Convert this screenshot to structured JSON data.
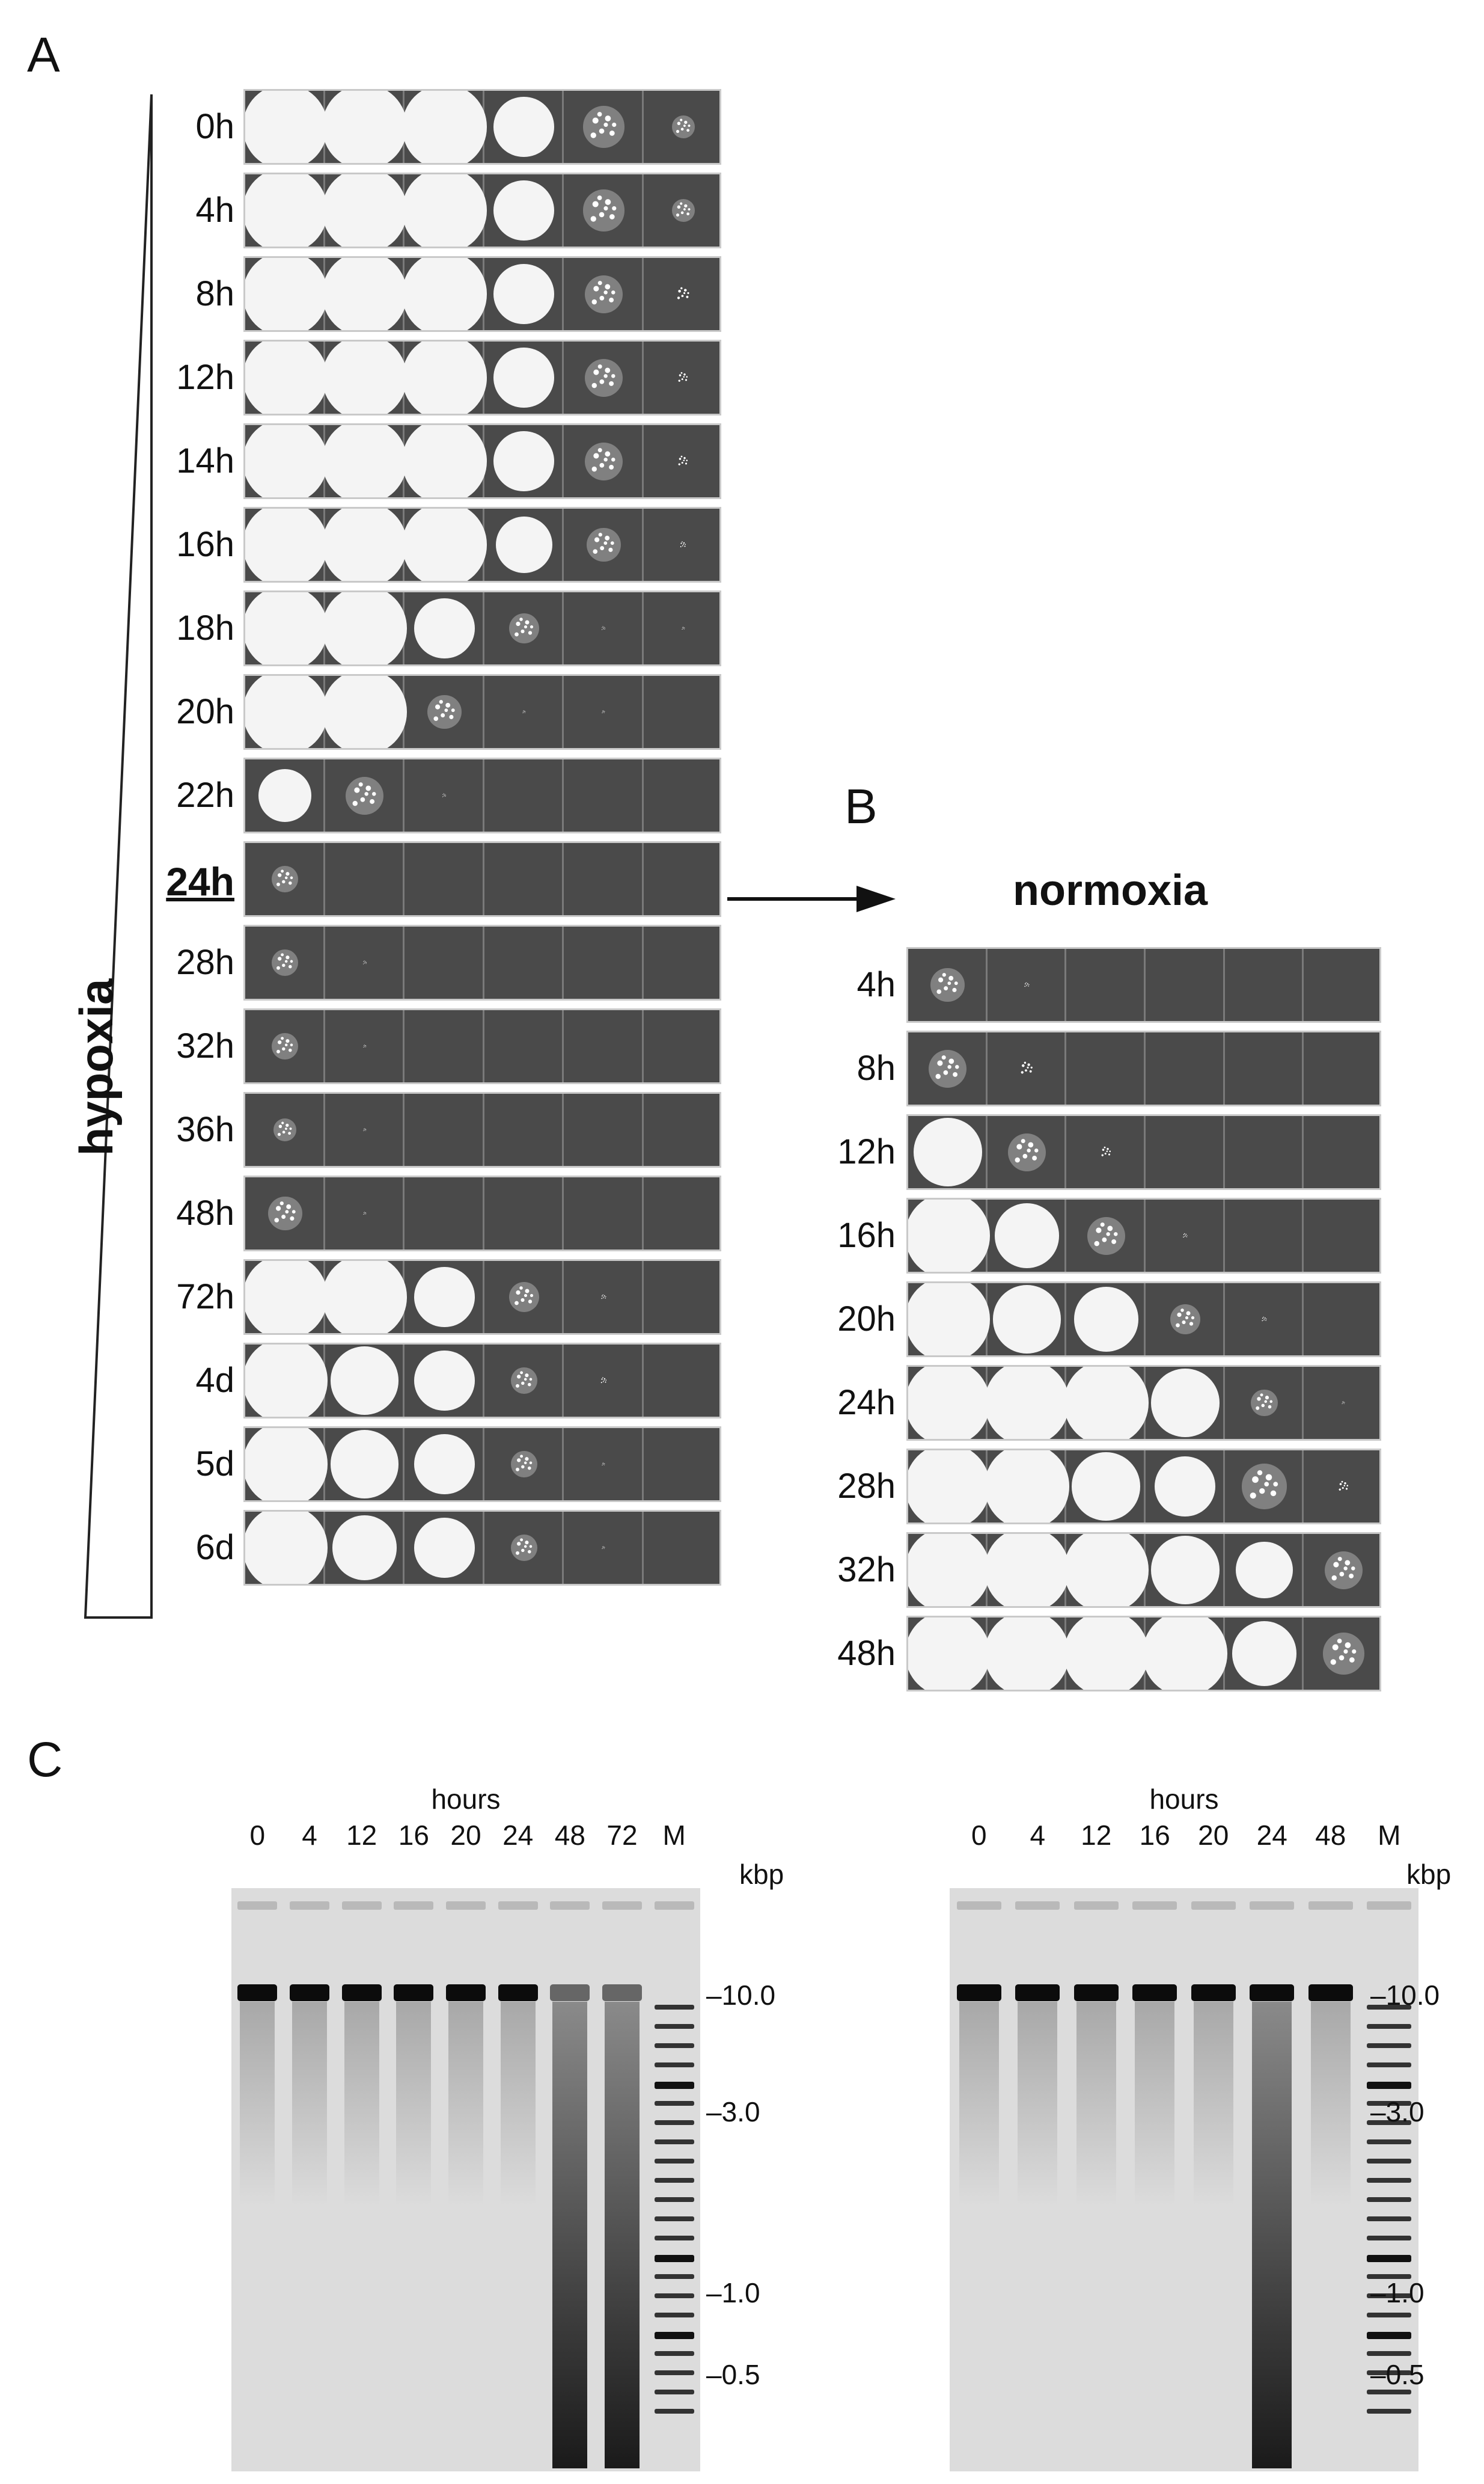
{
  "panels": {
    "a": "A",
    "b": "B",
    "c": "C"
  },
  "panel_a": {
    "gradient_label": "hypoxia",
    "arrow_label": "",
    "rows": [
      {
        "label": "0h",
        "growth": [
          1,
          1,
          1,
          0.8,
          0.55,
          0.3
        ]
      },
      {
        "label": "4h",
        "growth": [
          1,
          1,
          1,
          0.8,
          0.55,
          0.3
        ]
      },
      {
        "label": "8h",
        "growth": [
          1,
          1,
          1,
          0.8,
          0.5,
          0.25
        ]
      },
      {
        "label": "12h",
        "growth": [
          1,
          1,
          1,
          0.8,
          0.5,
          0.2
        ]
      },
      {
        "label": "14h",
        "growth": [
          1,
          1,
          1,
          0.8,
          0.5,
          0.2
        ]
      },
      {
        "label": "16h",
        "growth": [
          1,
          1,
          1,
          0.75,
          0.45,
          0.12
        ]
      },
      {
        "label": "18h",
        "growth": [
          1,
          1,
          0.8,
          0.4,
          0.08,
          0.03
        ]
      },
      {
        "label": "20h",
        "growth": [
          1,
          1,
          0.45,
          0.03,
          0.02,
          0
        ]
      },
      {
        "label": "22h",
        "growth": [
          0.7,
          0.5,
          0.08,
          0,
          0,
          0
        ]
      },
      {
        "label": "24h",
        "growth": [
          0.35,
          0,
          0,
          0,
          0,
          0
        ],
        "bold": true
      },
      {
        "label": "28h",
        "growth": [
          0.35,
          0.08,
          0,
          0,
          0,
          0
        ]
      },
      {
        "label": "32h",
        "growth": [
          0.35,
          0.05,
          0,
          0,
          0,
          0
        ]
      },
      {
        "label": "36h",
        "growth": [
          0.3,
          0.02,
          0,
          0,
          0,
          0
        ]
      },
      {
        "label": "48h",
        "growth": [
          0.45,
          0.03,
          0,
          0,
          0,
          0
        ]
      },
      {
        "label": "72h",
        "growth": [
          1,
          1,
          0.8,
          0.4,
          0.1,
          0
        ]
      },
      {
        "label": "4d",
        "growth": [
          1,
          0.9,
          0.8,
          0.35,
          0.12,
          0
        ]
      },
      {
        "label": "5d",
        "growth": [
          0.95,
          0.9,
          0.8,
          0.35,
          0.05,
          0
        ]
      },
      {
        "label": "6d",
        "growth": [
          0.95,
          0.85,
          0.8,
          0.35,
          0.03,
          0
        ]
      }
    ]
  },
  "panel_b": {
    "title": "normoxia",
    "rows": [
      {
        "label": "4h",
        "growth": [
          0.45,
          0.1,
          0,
          0,
          0,
          0
        ]
      },
      {
        "label": "8h",
        "growth": [
          0.5,
          0.25,
          0,
          0,
          0,
          0
        ]
      },
      {
        "label": "12h",
        "growth": [
          0.9,
          0.5,
          0.2,
          0,
          0,
          0
        ]
      },
      {
        "label": "16h",
        "growth": [
          1,
          0.85,
          0.5,
          0.1,
          0,
          0
        ]
      },
      {
        "label": "20h",
        "growth": [
          1,
          0.9,
          0.85,
          0.4,
          0.1,
          0
        ]
      },
      {
        "label": "24h",
        "growth": [
          1,
          1,
          1,
          0.9,
          0.35,
          0.03
        ]
      },
      {
        "label": "28h",
        "growth": [
          1,
          1,
          0.9,
          0.8,
          0.6,
          0.2
        ]
      },
      {
        "label": "32h",
        "growth": [
          1,
          1,
          1,
          0.9,
          0.75,
          0.5
        ]
      },
      {
        "label": "48h",
        "growth": [
          1,
          1,
          1,
          0.95,
          0.85,
          0.55
        ]
      }
    ]
  },
  "panel_c": {
    "gels": [
      {
        "axis_title": "hours",
        "lanes": [
          "0",
          "4",
          "12",
          "16",
          "20",
          "24",
          "48",
          "72",
          "M"
        ],
        "smeared_lanes": [
          "48",
          "72"
        ],
        "unit": "kbp",
        "markers": [
          "–10.0",
          "–3.0",
          "–1.0",
          "–0.5"
        ]
      },
      {
        "axis_title": "hours",
        "lanes": [
          "0",
          "4",
          "12",
          "16",
          "20",
          "24",
          "48",
          "M"
        ],
        "smeared_lanes": [
          "24"
        ],
        "unit": "kbp",
        "markers": [
          "–10.0",
          "–3.0",
          "–1.0",
          "–0.5"
        ]
      }
    ]
  }
}
